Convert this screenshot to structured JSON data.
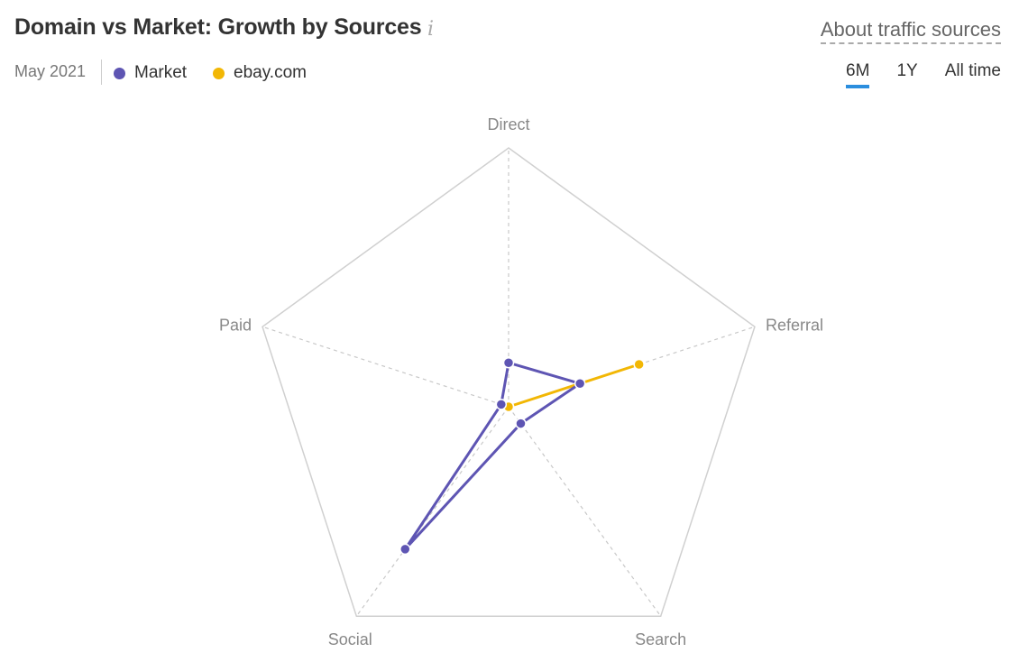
{
  "header": {
    "title": "Domain vs Market: Growth by Sources",
    "info_icon": "i",
    "about_link": "About traffic sources",
    "date": "May 2021"
  },
  "legend": [
    {
      "label": "Market",
      "color": "#5e55b3"
    },
    {
      "label": "ebay.com",
      "color": "#f2b705"
    }
  ],
  "periods": {
    "six_m": "6M",
    "one_y": "1Y",
    "all": "All time",
    "active": "6M"
  },
  "chart_data": {
    "type": "radar",
    "axes": [
      "Direct",
      "Referral",
      "Search",
      "Social",
      "Paid"
    ],
    "range": [
      0,
      1
    ],
    "grid": true,
    "series": [
      {
        "name": "Market",
        "color": "#5e55b3",
        "values": [
          0.17,
          0.29,
          0.08,
          0.68,
          0.03
        ]
      },
      {
        "name": "ebay.com",
        "color": "#f2b705",
        "values": [
          0.0,
          0.53,
          0.0,
          0.0,
          0.0
        ]
      }
    ]
  }
}
